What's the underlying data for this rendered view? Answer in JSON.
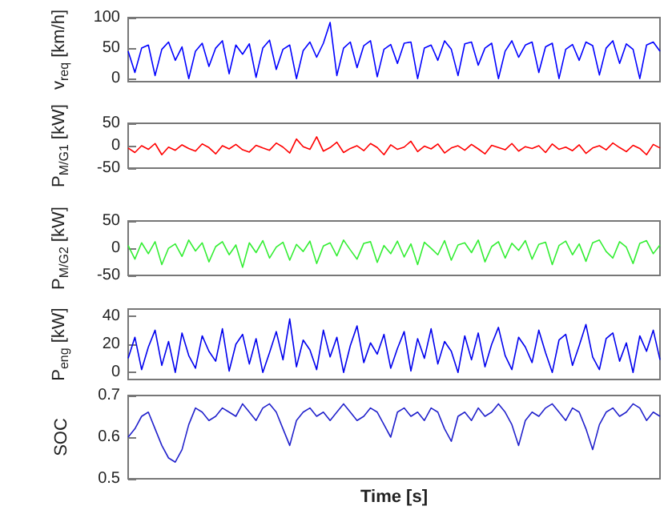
{
  "chart_data": [
    {
      "type": "line",
      "ylabel": "v$_{req}$ [km/h]",
      "ylim": [
        -5,
        100
      ],
      "yticks": [
        0,
        50,
        100
      ],
      "tick_labels": "y",
      "grid": false,
      "categories": [
        null,
        null,
        null,
        null,
        null,
        null,
        null,
        null,
        null,
        null,
        null,
        null,
        null,
        null,
        null,
        null,
        null,
        null,
        null,
        null,
        null,
        null,
        null,
        null,
        null,
        null,
        null,
        null,
        null,
        null,
        null,
        null,
        null,
        null,
        null,
        null,
        null,
        null,
        null,
        null,
        null,
        null,
        null,
        null,
        null,
        null,
        null,
        null,
        null,
        null,
        null,
        null,
        null,
        null,
        null,
        null,
        null,
        null,
        null,
        null,
        null,
        null,
        null,
        null,
        null,
        null,
        null,
        null,
        null,
        null,
        null,
        null,
        null,
        null,
        null,
        null,
        null,
        null,
        null,
        null
      ],
      "series": [
        {
          "color": "#0000ff",
          "values": [
            45,
            10,
            50,
            55,
            5,
            48,
            60,
            30,
            52,
            0,
            45,
            58,
            20,
            50,
            62,
            8,
            55,
            40,
            57,
            2,
            50,
            63,
            15,
            48,
            55,
            0,
            46,
            60,
            35,
            58,
            92,
            5,
            50,
            60,
            18,
            54,
            62,
            3,
            48,
            56,
            25,
            58,
            60,
            0,
            50,
            55,
            30,
            62,
            48,
            5,
            57,
            60,
            22,
            50,
            58,
            0,
            45,
            62,
            35,
            55,
            60,
            10,
            52,
            58,
            0,
            48,
            56,
            30,
            60,
            54,
            6,
            50,
            62,
            25,
            57,
            48,
            0,
            55,
            60,
            45
          ]
        }
      ]
    },
    {
      "type": "line",
      "ylabel": "P$_{M/G1}$ [kW]",
      "ylim": [
        -50,
        50
      ],
      "yticks": [
        -50,
        0,
        50
      ],
      "tick_labels": "y",
      "grid": false,
      "categories": [
        null,
        null,
        null,
        null,
        null,
        null,
        null,
        null,
        null,
        null,
        null,
        null,
        null,
        null,
        null,
        null,
        null,
        null,
        null,
        null,
        null,
        null,
        null,
        null,
        null,
        null,
        null,
        null,
        null,
        null,
        null,
        null,
        null,
        null,
        null,
        null,
        null,
        null,
        null,
        null,
        null,
        null,
        null,
        null,
        null,
        null,
        null,
        null,
        null,
        null,
        null,
        null,
        null,
        null,
        null,
        null,
        null,
        null,
        null,
        null,
        null,
        null,
        null,
        null,
        null,
        null,
        null,
        null,
        null,
        null,
        null,
        null,
        null,
        null,
        null,
        null,
        null,
        null,
        null,
        null
      ],
      "series": [
        {
          "color": "#ff0000",
          "values": [
            -5,
            -15,
            0,
            -8,
            5,
            -20,
            -3,
            -10,
            2,
            -6,
            -12,
            4,
            -4,
            -18,
            0,
            -7,
            3,
            -9,
            -14,
            1,
            -5,
            -10,
            6,
            -3,
            -16,
            15,
            -2,
            -8,
            20,
            -12,
            -4,
            8,
            -15,
            -6,
            0,
            -11,
            5,
            -4,
            -20,
            2,
            -8,
            -3,
            10,
            -13,
            -1,
            -7,
            4,
            -16,
            -5,
            0,
            -10,
            3,
            -7,
            -18,
            1,
            -4,
            -9,
            5,
            -12,
            -2,
            -6,
            0,
            -15,
            4,
            -8,
            -3,
            -11,
            2,
            -17,
            -5,
            0,
            -9,
            6,
            -4,
            -13,
            1,
            -6,
            -20,
            3,
            -5
          ]
        }
      ]
    },
    {
      "type": "line",
      "ylabel": "P$_{M/G2}$ [kW]",
      "ylim": [
        -50,
        50
      ],
      "yticks": [
        -50,
        0,
        50
      ],
      "tick_labels": "y",
      "grid": false,
      "categories": [
        null,
        null,
        null,
        null,
        null,
        null,
        null,
        null,
        null,
        null,
        null,
        null,
        null,
        null,
        null,
        null,
        null,
        null,
        null,
        null,
        null,
        null,
        null,
        null,
        null,
        null,
        null,
        null,
        null,
        null,
        null,
        null,
        null,
        null,
        null,
        null,
        null,
        null,
        null,
        null,
        null,
        null,
        null,
        null,
        null,
        null,
        null,
        null,
        null,
        null,
        null,
        null,
        null,
        null,
        null,
        null,
        null,
        null,
        null,
        null,
        null,
        null,
        null,
        null,
        null,
        null,
        null,
        null,
        null,
        null,
        null,
        null,
        null,
        null,
        null,
        null,
        null,
        null,
        null,
        null
      ],
      "series": [
        {
          "color": "#33ee33",
          "values": [
            5,
            -20,
            10,
            -10,
            12,
            -30,
            0,
            8,
            -15,
            15,
            -5,
            10,
            -25,
            3,
            12,
            -12,
            6,
            -35,
            10,
            -8,
            14,
            -18,
            2,
            11,
            -22,
            7,
            -6,
            13,
            -28,
            4,
            10,
            -14,
            15,
            -3,
            -20,
            9,
            12,
            -26,
            5,
            -10,
            13,
            -16,
            8,
            -30,
            11,
            0,
            -12,
            14,
            -22,
            6,
            10,
            -8,
            15,
            -25,
            3,
            12,
            -18,
            9,
            -4,
            14,
            -20,
            7,
            11,
            -30,
            5,
            13,
            -12,
            8,
            -24,
            10,
            15,
            -6,
            -18,
            12,
            2,
            -28,
            9,
            14,
            -10,
            6
          ]
        }
      ]
    },
    {
      "type": "line",
      "ylabel": "P$_{eng}$ [kW]",
      "ylim": [
        -5,
        45
      ],
      "yticks": [
        0,
        20,
        40
      ],
      "tick_labels": "y",
      "grid": false,
      "categories": [
        null,
        null,
        null,
        null,
        null,
        null,
        null,
        null,
        null,
        null,
        null,
        null,
        null,
        null,
        null,
        null,
        null,
        null,
        null,
        null,
        null,
        null,
        null,
        null,
        null,
        null,
        null,
        null,
        null,
        null,
        null,
        null,
        null,
        null,
        null,
        null,
        null,
        null,
        null,
        null,
        null,
        null,
        null,
        null,
        null,
        null,
        null,
        null,
        null,
        null,
        null,
        null,
        null,
        null,
        null,
        null,
        null,
        null,
        null,
        null,
        null,
        null,
        null,
        null,
        null,
        null,
        null,
        null,
        null,
        null,
        null,
        null,
        null,
        null,
        null,
        null,
        null,
        null,
        null,
        null
      ],
      "series": [
        {
          "color": "#0000ee",
          "values": [
            10,
            25,
            2,
            18,
            30,
            5,
            22,
            0,
            28,
            12,
            3,
            26,
            15,
            8,
            31,
            1,
            20,
            27,
            6,
            24,
            0,
            14,
            29,
            9,
            38,
            4,
            23,
            16,
            2,
            30,
            11,
            25,
            0,
            19,
            33,
            7,
            21,
            13,
            27,
            3,
            17,
            29,
            1,
            24,
            10,
            31,
            6,
            22,
            15,
            0,
            26,
            9,
            28,
            4,
            20,
            32,
            12,
            2,
            25,
            18,
            7,
            30,
            14,
            0,
            23,
            27,
            5,
            19,
            34,
            11,
            2,
            24,
            28,
            8,
            21,
            0,
            26,
            15,
            30,
            9
          ]
        }
      ]
    },
    {
      "type": "line",
      "ylabel": "SOC",
      "xlabel": "Time [s]",
      "ylim": [
        0.5,
        0.7
      ],
      "yticks": [
        0.5,
        0.6,
        0.7
      ],
      "tick_labels": "y",
      "grid": false,
      "categories": [
        null,
        null,
        null,
        null,
        null,
        null,
        null,
        null,
        null,
        null,
        null,
        null,
        null,
        null,
        null,
        null,
        null,
        null,
        null,
        null,
        null,
        null,
        null,
        null,
        null,
        null,
        null,
        null,
        null,
        null,
        null,
        null,
        null,
        null,
        null,
        null,
        null,
        null,
        null,
        null,
        null,
        null,
        null,
        null,
        null,
        null,
        null,
        null,
        null,
        null,
        null,
        null,
        null,
        null,
        null,
        null,
        null,
        null,
        null,
        null,
        null,
        null,
        null,
        null,
        null,
        null,
        null,
        null,
        null,
        null,
        null,
        null,
        null,
        null,
        null,
        null,
        null,
        null,
        null,
        null
      ],
      "series": [
        {
          "color": "#2222cc",
          "values": [
            0.6,
            0.62,
            0.65,
            0.66,
            0.62,
            0.58,
            0.55,
            0.54,
            0.57,
            0.63,
            0.67,
            0.66,
            0.64,
            0.65,
            0.67,
            0.66,
            0.65,
            0.68,
            0.66,
            0.64,
            0.67,
            0.68,
            0.66,
            0.62,
            0.58,
            0.64,
            0.66,
            0.67,
            0.65,
            0.66,
            0.64,
            0.66,
            0.68,
            0.66,
            0.64,
            0.65,
            0.67,
            0.66,
            0.63,
            0.6,
            0.66,
            0.67,
            0.65,
            0.66,
            0.64,
            0.67,
            0.66,
            0.62,
            0.59,
            0.65,
            0.66,
            0.64,
            0.67,
            0.65,
            0.66,
            0.68,
            0.66,
            0.63,
            0.58,
            0.64,
            0.66,
            0.65,
            0.67,
            0.68,
            0.66,
            0.64,
            0.67,
            0.66,
            0.62,
            0.57,
            0.63,
            0.66,
            0.67,
            0.65,
            0.66,
            0.68,
            0.67,
            0.64,
            0.66,
            0.65
          ]
        }
      ]
    }
  ]
}
